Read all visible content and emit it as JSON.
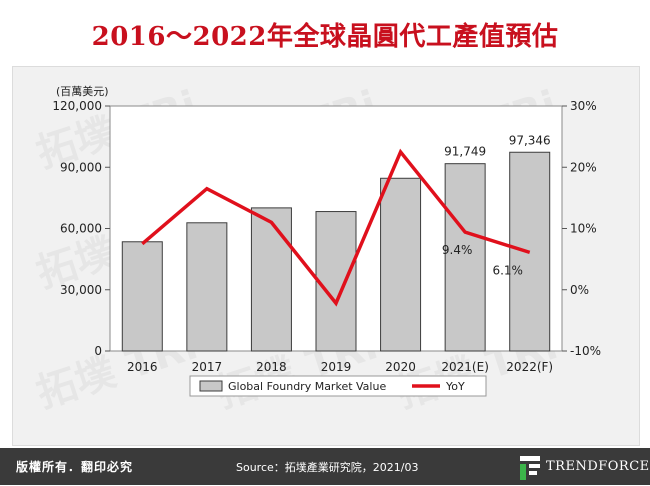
{
  "header": {
    "title": "2016～2022年全球晶圓代工產值預估"
  },
  "chart_data": {
    "type": "bar",
    "categories": [
      "2016",
      "2017",
      "2018",
      "2019",
      "2020",
      "2021(E)",
      "2022(F)"
    ],
    "series": [
      {
        "name": "Global Foundry Market Value",
        "kind": "bar",
        "axis": "left",
        "values": [
          53500,
          62800,
          70100,
          68300,
          84600,
          91749,
          97346
        ]
      },
      {
        "name": "YoY",
        "kind": "line",
        "axis": "right",
        "values": [
          7.5,
          16.5,
          11.0,
          -2.2,
          22.5,
          9.4,
          6.1
        ]
      }
    ],
    "y_left": {
      "label": "(百萬美元)",
      "min": 0,
      "max": 120000,
      "ticks": [
        "0",
        "30,000",
        "60,000",
        "90,000",
        "120,000"
      ]
    },
    "y_right": {
      "min": -10,
      "max": 30,
      "ticks": [
        "-10%",
        "0%",
        "10%",
        "20%",
        "30%"
      ]
    },
    "data_labels": [
      {
        "series": 0,
        "index": 5,
        "text": "91,749"
      },
      {
        "series": 0,
        "index": 6,
        "text": "97,346"
      },
      {
        "series": 1,
        "index": 5,
        "text": "9.4%"
      },
      {
        "series": 1,
        "index": 6,
        "text": "6.1%"
      }
    ],
    "legend_placement": "bottom",
    "grid": false,
    "colors": {
      "bar": "#c8c8c8",
      "bar_stroke": "#3c3c3c",
      "line": "#e0101c"
    }
  },
  "footer": {
    "rights": "版權所有．翻印必究",
    "source": "Source：拓墣產業研究院，2021/03",
    "logo_text": "TRENDFORCE"
  }
}
